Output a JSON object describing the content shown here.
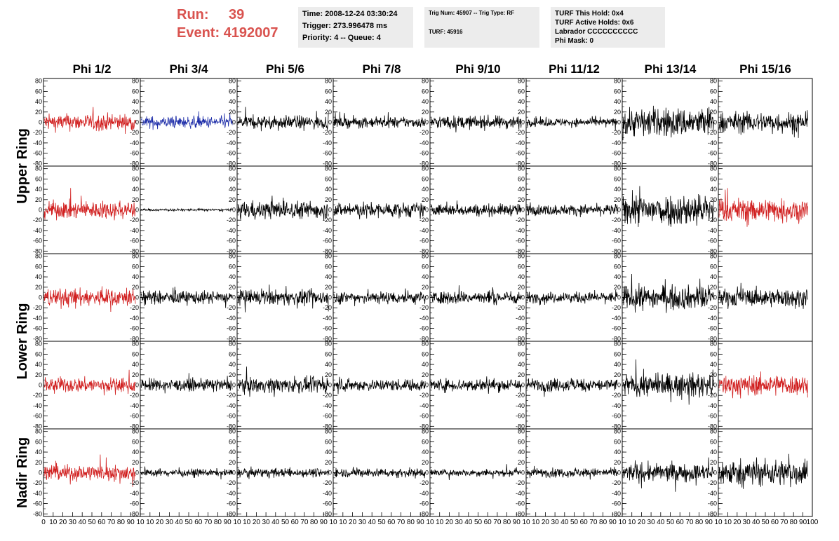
{
  "header": {
    "run_label": "Run:",
    "run_value": "39",
    "event_label": "Event:",
    "event_value": "4192007",
    "time": "Time: 2008-12-24 03:30:24",
    "trigger": "Trigger: 273.996478 ms",
    "priority": "Priority: 4 -- Queue: 4",
    "trig_num": "Trig Num: 45907 -- Trig Type: RF",
    "turf": "TURF: 45916",
    "turf_this_hold": "TURF This Hold: 0x4",
    "turf_active_holds": "TURF Active Holds: 0x6",
    "labrador": "Labrador CCCCCCCCCC",
    "phi_mask": "Phi Mask: 0"
  },
  "chart_data": {
    "type": "line",
    "columns": [
      "Phi 1/2",
      "Phi 3/4",
      "Phi 5/6",
      "Phi 7/8",
      "Phi 9/10",
      "Phi 11/12",
      "Phi 13/14",
      "Phi 15/16"
    ],
    "rows": [
      "Upper Ring",
      "Lower Ring",
      "Nadir Ring"
    ],
    "ylim": [
      -85,
      85
    ],
    "xlim": [
      0,
      100
    ],
    "y_ticks": [
      -80,
      -60,
      -40,
      -20,
      0,
      20,
      40,
      60,
      80
    ],
    "x_ticks": [
      0,
      10,
      20,
      30,
      40,
      50,
      60,
      70,
      80,
      90,
      100
    ],
    "x_tick_labels_first": [
      "0",
      "10",
      "20",
      "30",
      "40",
      "50",
      "60",
      "70",
      "80",
      "90",
      "10"
    ],
    "x_tick_labels_mid": [
      "10",
      "20",
      "30",
      "40",
      "50",
      "60",
      "70",
      "80",
      "90",
      "10"
    ],
    "x_tick_labels_last": [
      "10",
      "20",
      "30",
      "40",
      "50",
      "60",
      "70",
      "80",
      "90",
      "100"
    ],
    "panel_amplitudes": [
      [
        28,
        20,
        22,
        18,
        22,
        14,
        50,
        35
      ],
      [
        30,
        4,
        30,
        25,
        20,
        18,
        55,
        40
      ],
      [
        30,
        22,
        25,
        22,
        22,
        18,
        40,
        30
      ],
      [
        25,
        20,
        25,
        20,
        22,
        22,
        38,
        35
      ],
      [
        28,
        12,
        15,
        15,
        12,
        15,
        30,
        45
      ]
    ],
    "panel_colors": [
      [
        "#d12020",
        "#1c2ca8",
        "#000000",
        "#000000",
        "#000000",
        "#000000",
        "#000000",
        "#000000"
      ],
      [
        "#d12020",
        "#000000",
        "#000000",
        "#000000",
        "#000000",
        "#000000",
        "#000000",
        "#d12020"
      ],
      [
        "#d12020",
        "#000000",
        "#000000",
        "#000000",
        "#000000",
        "#000000",
        "#000000",
        "#000000"
      ],
      [
        "#d12020",
        "#000000",
        "#000000",
        "#000000",
        "#000000",
        "#000000",
        "#000000",
        "#d12020"
      ],
      [
        "#d12020",
        "#000000",
        "#000000",
        "#000000",
        "#000000",
        "#000000",
        "#000000",
        "#000000"
      ]
    ],
    "samples_per_trace": 260,
    "grid": false
  }
}
